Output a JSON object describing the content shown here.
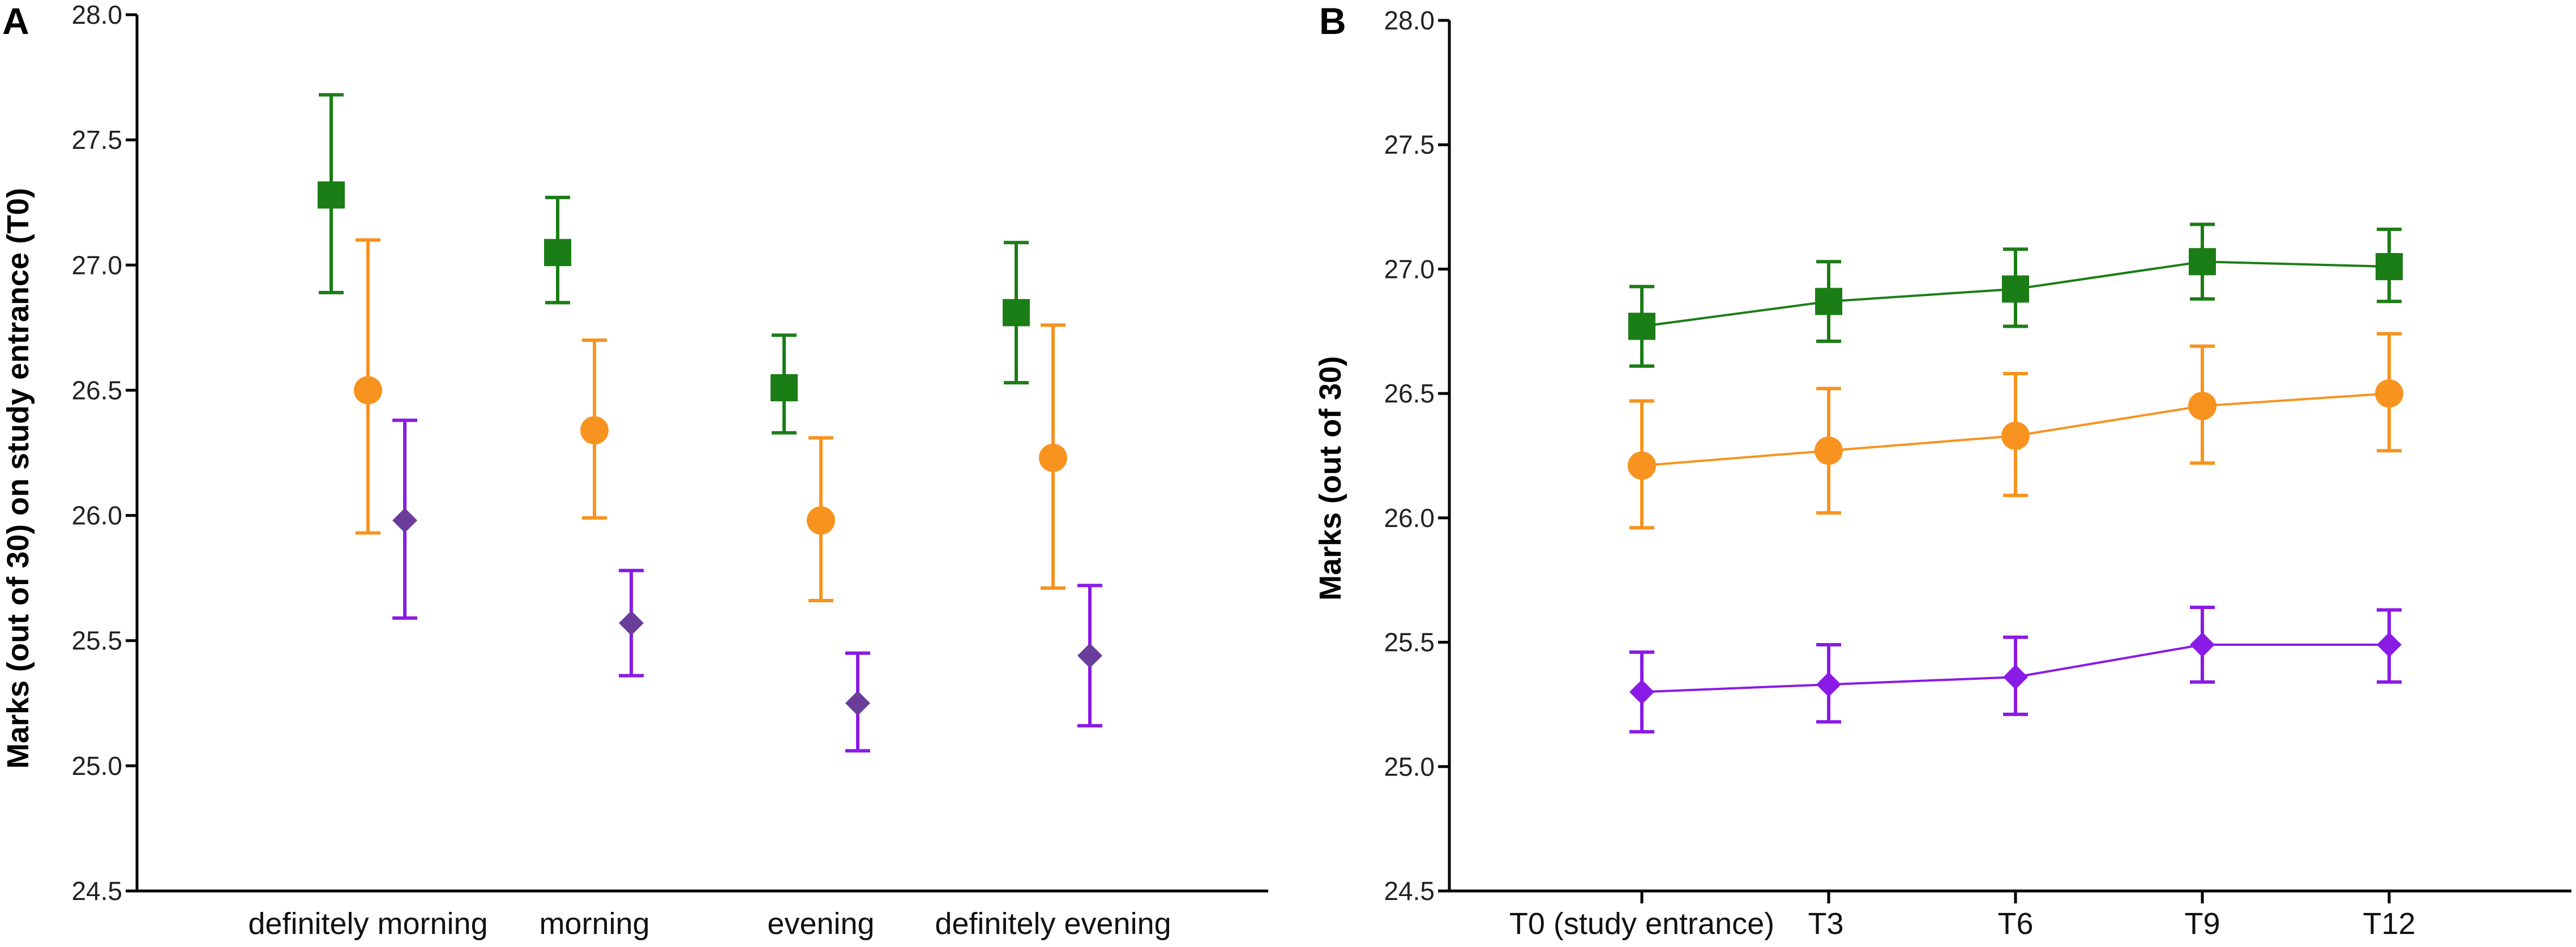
{
  "colors": {
    "green": "#1b7d16",
    "orange": "#f7931e",
    "purple_A": "#6a3d9a",
    "purple_B": "#8a1ae6",
    "errorbar_purple": "#8a1ae6"
  },
  "chart_data": [
    {
      "panel": "A",
      "type": "scatter",
      "title": "",
      "xlabel": "",
      "ylabel": "Marks (out of 30) on study entrance (T0)",
      "ylim": [
        24.5,
        28.0
      ],
      "yticks": [
        "24.5",
        "25.0",
        "25.5",
        "26.0",
        "26.5",
        "27.0",
        "27.5",
        "28.0"
      ],
      "categories": [
        "definitely morning",
        "morning",
        "evening",
        "definitely evening"
      ],
      "series": [
        {
          "name": "green",
          "marker": "square",
          "color": "#1b7d16",
          "errorbar_color": "#1b7d16",
          "values": [
            27.28,
            27.05,
            26.51,
            26.81
          ],
          "lower": [
            26.89,
            26.85,
            26.33,
            26.53
          ],
          "upper": [
            27.68,
            27.27,
            26.72,
            27.09
          ]
        },
        {
          "name": "orange",
          "marker": "circle",
          "color": "#f7931e",
          "errorbar_color": "#f7931e",
          "values": [
            26.5,
            26.34,
            25.98,
            26.23
          ],
          "lower": [
            25.93,
            25.99,
            25.66,
            25.71
          ],
          "upper": [
            27.1,
            26.7,
            26.31,
            26.76
          ]
        },
        {
          "name": "purple",
          "marker": "diamond",
          "color": "#6a3d9a",
          "errorbar_color": "#8a1ae6",
          "values": [
            25.98,
            25.57,
            25.25,
            25.44
          ],
          "lower": [
            25.59,
            25.36,
            25.06,
            25.16
          ],
          "upper": [
            26.38,
            25.78,
            25.45,
            25.72
          ]
        }
      ]
    },
    {
      "panel": "B",
      "type": "line",
      "title": "",
      "xlabel": "",
      "ylabel": "Marks (out of 30)",
      "ylim": [
        24.5,
        28.0
      ],
      "yticks": [
        "24.5",
        "25.0",
        "25.5",
        "26.0",
        "26.5",
        "27.0",
        "27.5",
        "28.0"
      ],
      "categories": [
        "T0 (study entrance)",
        "T3",
        "T6",
        "T9",
        "T12"
      ],
      "series": [
        {
          "name": "green",
          "marker": "square",
          "color": "#1b7d16",
          "errorbar_color": "#1b7d16",
          "values": [
            26.77,
            26.87,
            26.92,
            27.03,
            27.01
          ],
          "lower": [
            26.61,
            26.71,
            26.77,
            26.88,
            26.87
          ],
          "upper": [
            26.93,
            27.03,
            27.08,
            27.18,
            27.16
          ]
        },
        {
          "name": "orange",
          "marker": "circle",
          "color": "#f7931e",
          "errorbar_color": "#f7931e",
          "values": [
            26.21,
            26.27,
            26.33,
            26.45,
            26.5
          ],
          "lower": [
            25.96,
            26.02,
            26.09,
            26.22,
            26.27
          ],
          "upper": [
            26.47,
            26.52,
            26.58,
            26.69,
            26.74
          ]
        },
        {
          "name": "purple",
          "marker": "diamond",
          "color": "#8a1ae6",
          "errorbar_color": "#8a1ae6",
          "values": [
            25.3,
            25.33,
            25.36,
            25.49,
            25.49
          ],
          "lower": [
            25.14,
            25.18,
            25.21,
            25.34,
            25.34
          ],
          "upper": [
            25.46,
            25.49,
            25.52,
            25.64,
            25.63
          ]
        }
      ]
    }
  ]
}
